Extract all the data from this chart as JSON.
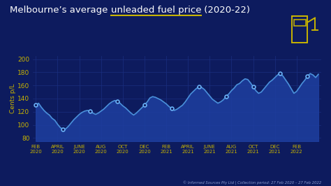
{
  "title_part1": "Melbourne’s average ",
  "title_underline": "unleaded fuel price",
  "title_part2": " (2020-22)",
  "background_color": "#0d1b5e",
  "line_color": "#4a90d9",
  "fill_color_top": "#1e3fa0",
  "fill_color_bot": "#0d1b5e",
  "marker_face": "#0d1b5e",
  "marker_edge": "#6ab0f5",
  "grid_color": "#1a2f80",
  "ylabel": "Cents p/L",
  "ylabel_color": "#c8b400",
  "tick_color": "#c8b400",
  "title_color": "#ffffff",
  "underline_color": "#c8b400",
  "pump_color": "#c8b400",
  "footnote": "© Informed Sources Pty Ltd | Collection period: 27 Feb 2020 – 27 Feb 2022",
  "footnote_color": "#8899cc",
  "yticks": [
    80,
    100,
    120,
    140,
    160,
    180,
    200
  ],
  "xtick_labels": [
    "FEB\n2020",
    "APRIL\n2020",
    "JUNE\n2020",
    "AUG\n2020",
    "OCT\n2020",
    "DEC\n2020",
    "FEB\n2021",
    "APRIL\n2021",
    "JUNE\n2021",
    "AUG\n2021",
    "OCT\n2021",
    "DEC\n2021",
    "FEB\n2022"
  ],
  "xtick_positions": [
    0,
    8,
    16,
    24,
    32,
    40,
    48,
    56,
    64,
    72,
    80,
    88,
    96
  ],
  "x_values": [
    0,
    1,
    2,
    3,
    4,
    5,
    6,
    7,
    8,
    9,
    10,
    11,
    12,
    13,
    14,
    15,
    16,
    17,
    18,
    19,
    20,
    21,
    22,
    23,
    24,
    25,
    26,
    27,
    28,
    29,
    30,
    31,
    32,
    33,
    34,
    35,
    36,
    37,
    38,
    39,
    40,
    41,
    42,
    43,
    44,
    45,
    46,
    47,
    48,
    49,
    50,
    51,
    52,
    53,
    54,
    55,
    56,
    57,
    58,
    59,
    60,
    61,
    62,
    63,
    64,
    65,
    66,
    67,
    68,
    69,
    70,
    71,
    72,
    73,
    74,
    75,
    76,
    77,
    78,
    79,
    80,
    81,
    82,
    83,
    84,
    85,
    86,
    87,
    88,
    89,
    90,
    91,
    92,
    93,
    94,
    95,
    96,
    97,
    98,
    99,
    100,
    101,
    102,
    103,
    104
  ],
  "y_values": [
    130,
    133,
    127,
    122,
    118,
    115,
    110,
    107,
    101,
    96,
    93,
    94,
    98,
    103,
    108,
    112,
    116,
    119,
    121,
    122,
    121,
    118,
    116,
    118,
    121,
    124,
    128,
    132,
    135,
    137,
    136,
    133,
    129,
    126,
    122,
    118,
    115,
    118,
    122,
    126,
    130,
    135,
    141,
    143,
    142,
    140,
    138,
    135,
    132,
    128,
    125,
    122,
    124,
    127,
    130,
    135,
    141,
    147,
    151,
    155,
    158,
    157,
    154,
    149,
    144,
    139,
    136,
    133,
    135,
    138,
    143,
    147,
    152,
    156,
    161,
    163,
    167,
    170,
    169,
    164,
    158,
    152,
    148,
    150,
    155,
    160,
    165,
    168,
    172,
    176,
    178,
    174,
    168,
    162,
    155,
    148,
    151,
    157,
    163,
    168,
    174,
    178,
    176,
    172,
    177
  ],
  "marker_positions": [
    0,
    10,
    20,
    30,
    40,
    50,
    60,
    70,
    80,
    90,
    100
  ],
  "ylim": [
    75,
    205
  ],
  "xlim_min": -1,
  "xlim_max": 105
}
